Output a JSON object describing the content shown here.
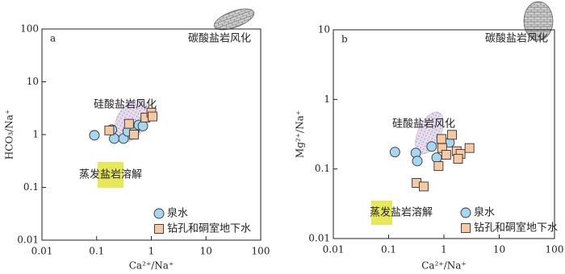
{
  "chart_data": [
    {
      "type": "scatter",
      "label": "a",
      "xlabel": "Ca²⁺/Na⁺",
      "ylabel": "HCO₃/Na⁺",
      "xscale": "log",
      "yscale": "log",
      "xlim": [
        0.01,
        100
      ],
      "ylim": [
        0.01,
        100
      ],
      "xticks": [
        0.01,
        0.1,
        1,
        10,
        100
      ],
      "yticks": [
        0.01,
        0.1,
        1,
        10,
        100
      ],
      "annotations": [
        "碳酸盐岩风化",
        "硅酸盐岩风化",
        "蒸发盐岩溶解"
      ],
      "legend_loc": "lower right",
      "series": [
        {
          "name": "泉水",
          "color": "#a6d6f0",
          "marker": "circle",
          "x": [
            0.091,
            0.19,
            0.21,
            0.31,
            0.37,
            0.5,
            0.59,
            0.7
          ],
          "values": [
            0.97,
            1.24,
            0.84,
            0.84,
            1.15,
            1.27,
            1.52,
            1.45
          ]
        },
        {
          "name": "钻孔和硐室地下水",
          "color": "#f7c8a4",
          "marker": "square",
          "x": [
            0.17,
            0.39,
            0.48,
            0.78,
            1.0,
            1.05
          ],
          "values": [
            1.2,
            1.6,
            1.0,
            2.1,
            2.6,
            2.2
          ]
        }
      ]
    },
    {
      "type": "scatter",
      "label": "b",
      "xlabel": "Ca²⁺/Na⁺",
      "ylabel": "Mg²⁺/Na⁺",
      "xscale": "log",
      "yscale": "log",
      "xlim": [
        0.01,
        100
      ],
      "ylim": [
        0.01,
        10
      ],
      "xticks": [
        0.01,
        0.1,
        1,
        10,
        100
      ],
      "yticks": [
        0.01,
        0.1,
        1,
        10
      ],
      "annotations": [
        "碳酸盐岩风化",
        "硅酸盐岩风化",
        "蒸发盐岩溶解"
      ],
      "legend_loc": "lower right",
      "series": [
        {
          "name": "泉水",
          "color": "#a6d6f0",
          "marker": "circle",
          "x": [
            0.13,
            0.31,
            0.33,
            0.6,
            0.74,
            1.26
          ],
          "values": [
            0.175,
            0.17,
            0.13,
            0.21,
            0.145,
            0.24
          ]
        },
        {
          "name": "钻孔和硐室地下水",
          "color": "#f7c8a4",
          "marker": "square",
          "x": [
            0.9,
            1.4,
            0.93,
            1.1,
            0.8,
            1.7,
            2.0,
            2.9,
            1.8,
            0.32,
            0.43
          ],
          "values": [
            0.27,
            0.31,
            0.2,
            0.16,
            0.11,
            0.18,
            0.165,
            0.2,
            0.14,
            0.063,
            0.056
          ]
        }
      ]
    }
  ]
}
